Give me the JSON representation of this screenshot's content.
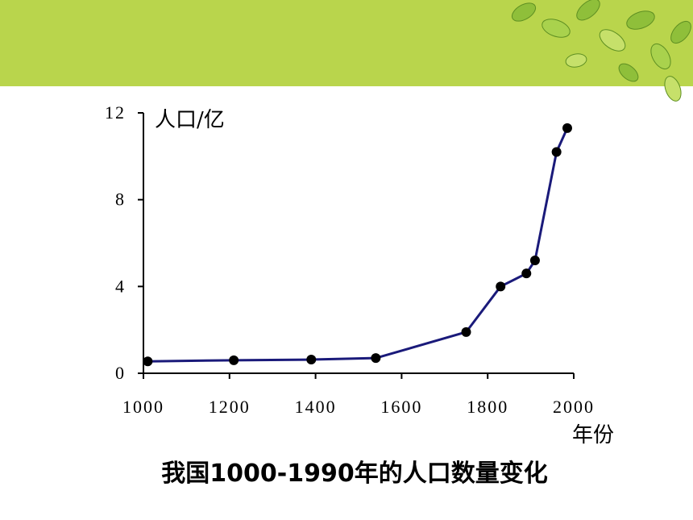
{
  "chart_data": {
    "type": "line",
    "title": "我国1000-1990年的人口数量变化",
    "y_label": "人口/亿",
    "x_label": "年份",
    "x": [
      1010,
      1210,
      1390,
      1540,
      1750,
      1830,
      1890,
      1910,
      1960,
      1985
    ],
    "series": [
      {
        "color": "#1a1a7a",
        "values": [
          0.55,
          0.6,
          0.63,
          0.7,
          1.9,
          4,
          4.6,
          5.2,
          10.2,
          11.3
        ]
      }
    ],
    "xlim": [
      1000,
      2000
    ],
    "xticks": [
      1000,
      1200,
      1400,
      1600,
      1800,
      2000
    ],
    "ylim": [
      0,
      12
    ],
    "yticks": [
      0,
      4,
      8,
      12
    ]
  }
}
